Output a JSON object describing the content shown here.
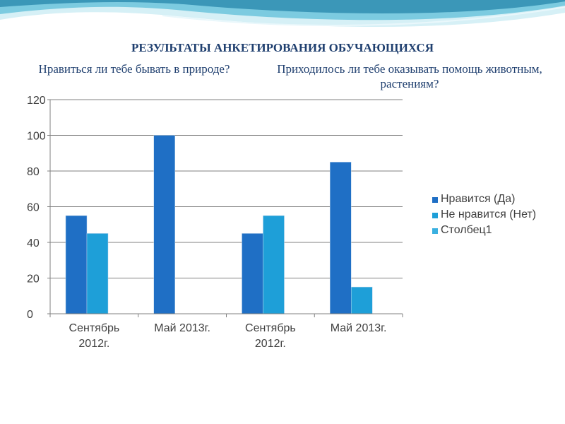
{
  "slide": {
    "title": "РЕЗУЛЬТАТЫ АНКЕТИРОВАНИЯ ОБУЧАЮЩИХСЯ",
    "question_left": "Нравиться ли тебе бывать в природе?",
    "question_right": "Приходилось ли тебе оказывать помощь животным, растениям?"
  },
  "colors": {
    "title_text": "#1f3f6f",
    "decor_wave_light": "#bfe6f0",
    "decor_wave_mid": "#4fb3cf",
    "decor_wave_dark": "#2a7f9f"
  },
  "chart_data": {
    "type": "bar",
    "categories": [
      "Сентябрь 2012г.",
      "Май 2013г.",
      "Сентябрь 2012г.",
      "Май 2013г."
    ],
    "series": [
      {
        "name": "Нравится (Да)",
        "values": [
          55,
          100,
          45,
          85
        ],
        "color": "#1f6fc5"
      },
      {
        "name": "Не нравится (Нет)",
        "values": [
          45,
          0,
          55,
          15
        ],
        "color": "#1e9fd8"
      },
      {
        "name": "Столбец1",
        "values": [
          0,
          0,
          0,
          0
        ],
        "color": "#3ab0e0"
      }
    ],
    "ylim": [
      0,
      120
    ],
    "yticks": [
      0,
      20,
      40,
      60,
      80,
      100,
      120
    ],
    "grid": true,
    "legend": "right",
    "title": "",
    "xlabel": "",
    "ylabel": ""
  }
}
